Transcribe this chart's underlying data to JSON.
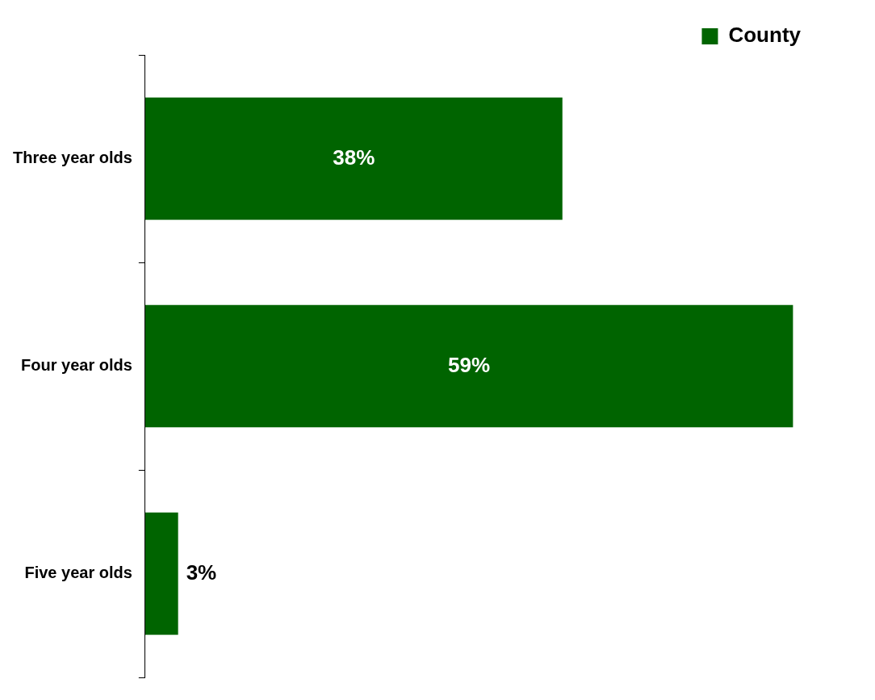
{
  "chart_data": {
    "type": "bar",
    "orientation": "horizontal",
    "categories": [
      "Three year olds",
      "Four year olds",
      "Five year olds"
    ],
    "series": [
      {
        "name": "County",
        "color": "#006400",
        "values": [
          38,
          59,
          3
        ],
        "value_labels": [
          "38%",
          "59%",
          "3%"
        ]
      }
    ],
    "legend": "top right",
    "grid": false
  }
}
